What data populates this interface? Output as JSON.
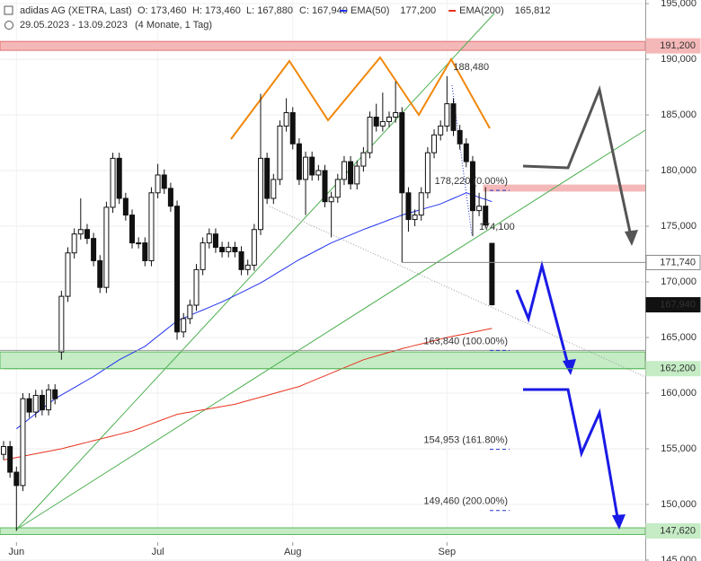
{
  "chart_data": {
    "type": "candlestick",
    "title": "adidas AG (XETRA, Last)",
    "header": {
      "open": "O: 173,460",
      "high": "H: 173,460",
      "low": "L: 167,880",
      "close": "C: 167,940"
    },
    "subtitle": "29.05.2023 - 13.09.2023",
    "period": "(4 Monate, 1 Tag)",
    "categories": [
      null,
      null,
      "Jun",
      null,
      null,
      null,
      null,
      null,
      null,
      null,
      null,
      null,
      null,
      null,
      null,
      null,
      null,
      null,
      null,
      null,
      null,
      null,
      null,
      null,
      "Jul",
      null,
      null,
      null,
      null,
      null,
      null,
      null,
      null,
      null,
      null,
      null,
      null,
      null,
      null,
      null,
      null,
      null,
      null,
      null,
      null,
      "Aug",
      null,
      null,
      null,
      null,
      null,
      null,
      null,
      null,
      null,
      null,
      null,
      null,
      null,
      null,
      null,
      null,
      null,
      null,
      null,
      null,
      null,
      null,
      null,
      "Sep",
      null,
      null,
      null,
      null,
      null,
      null,
      null
    ],
    "open": [
      154500,
      155200,
      152900,
      151700,
      159500,
      158300,
      159800,
      158500,
      160300,
      163700,
      168700,
      172600,
      174300,
      174700,
      173900,
      171900,
      169500,
      176700,
      181100,
      177500,
      176000,
      173500,
      173500,
      171900,
      178000,
      179600,
      178400,
      176800,
      165500,
      166700,
      167900,
      171100,
      173500,
      174300,
      173100,
      172700,
      173100,
      172700,
      171100,
      171500,
      174700,
      181100,
      177500,
      179200,
      184000,
      185200,
      182400,
      179200,
      181200,
      179600,
      180000,
      177200,
      177600,
      179200,
      180800,
      178800,
      180400,
      181600,
      184800,
      184000,
      184400,
      184800,
      185200,
      178000,
      175600,
      176000,
      178000,
      181600,
      183200,
      184000,
      186000,
      183600,
      182400,
      180800,
      176400,
      176800,
      173460
    ],
    "high": [
      155700,
      155700,
      153400,
      160000,
      160000,
      160300,
      160300,
      160800,
      160800,
      169200,
      173100,
      174800,
      177500,
      175200,
      174400,
      172400,
      177200,
      181600,
      181600,
      178000,
      176500,
      174000,
      174000,
      178500,
      180600,
      180100,
      178900,
      177300,
      167200,
      168400,
      171600,
      174000,
      174800,
      174800,
      173600,
      173600,
      173600,
      173200,
      172000,
      175200,
      186900,
      181600,
      179700,
      184500,
      186500,
      185700,
      182900,
      181700,
      181700,
      180500,
      180500,
      178100,
      179700,
      181300,
      181300,
      180900,
      182100,
      185300,
      186000,
      187000,
      185300,
      188000,
      185700,
      178500,
      176500,
      178500,
      182100,
      183700,
      184500,
      188480,
      186500,
      184100,
      182900,
      181300,
      178000,
      178500,
      173460
    ],
    "low": [
      154000,
      152400,
      147620,
      151200,
      157800,
      157800,
      158000,
      158000,
      159000,
      163000,
      168200,
      172100,
      173800,
      173400,
      171400,
      169000,
      169000,
      176200,
      177000,
      175500,
      173000,
      173000,
      171400,
      171400,
      177500,
      177900,
      176300,
      164800,
      165000,
      166200,
      167400,
      170600,
      173000,
      172600,
      172200,
      172200,
      172200,
      170600,
      170600,
      171000,
      174200,
      177000,
      177000,
      178700,
      183500,
      181900,
      178700,
      176000,
      179100,
      179100,
      176700,
      174000,
      177100,
      178700,
      178300,
      178300,
      179900,
      181100,
      183500,
      183500,
      183900,
      184300,
      171740,
      174500,
      175000,
      175500,
      177500,
      181100,
      182700,
      183500,
      183100,
      181900,
      180300,
      174100,
      175900,
      174800,
      167880
    ],
    "close": [
      155200,
      152900,
      151700,
      159500,
      158300,
      159800,
      158500,
      160300,
      159500,
      168700,
      172600,
      174300,
      174700,
      173900,
      171900,
      169500,
      176700,
      181100,
      177500,
      176000,
      173500,
      173500,
      171900,
      178000,
      179600,
      178400,
      176800,
      165500,
      166700,
      167900,
      171100,
      173500,
      174300,
      173100,
      172700,
      173100,
      172700,
      171100,
      171500,
      174700,
      181100,
      177500,
      179200,
      184000,
      185200,
      182400,
      179200,
      181200,
      179600,
      180000,
      177200,
      177600,
      179200,
      180800,
      178800,
      180400,
      181600,
      184800,
      184000,
      184400,
      184800,
      185200,
      178000,
      175600,
      176000,
      178000,
      181600,
      183200,
      184000,
      186000,
      183600,
      182400,
      180800,
      176400,
      176800,
      175100,
      167940
    ],
    "series": [
      {
        "name": "EMA(50)",
        "color": "#2233ee",
        "last_label": "177,200",
        "values": [
          null,
          null,
          156800,
          157250,
          157700,
          158150,
          158600,
          159050,
          159500,
          159830,
          160170,
          160500,
          160830,
          161170,
          161500,
          161880,
          162250,
          162630,
          163000,
          163300,
          163600,
          163900,
          164200,
          164660,
          165120,
          165580,
          166040,
          166500,
          166740,
          166990,
          167230,
          167470,
          167710,
          167960,
          168200,
          168480,
          168770,
          169050,
          169330,
          169620,
          169900,
          170250,
          170600,
          170950,
          171300,
          171650,
          172000,
          172300,
          172600,
          172900,
          173200,
          173500,
          173740,
          173980,
          174220,
          174460,
          174700,
          174920,
          175130,
          175350,
          175570,
          175780,
          176000,
          176170,
          176330,
          176500,
          176670,
          176830,
          177000,
          177250,
          177500,
          177750,
          178000,
          177800,
          177600,
          177400,
          177200
        ]
      },
      {
        "name": "EMA(200)",
        "color": "#e8321e",
        "last_label": "165,812",
        "values": [
          154000,
          154110,
          154220,
          154330,
          154440,
          154560,
          154670,
          154780,
          154890,
          155000,
          155150,
          155290,
          155440,
          155580,
          155730,
          155870,
          156020,
          156160,
          156310,
          156450,
          156600,
          156810,
          157030,
          157240,
          157460,
          157670,
          157890,
          158100,
          158200,
          158300,
          158400,
          158500,
          158600,
          158700,
          158800,
          158900,
          159000,
          159160,
          159320,
          159480,
          159640,
          159800,
          159960,
          160120,
          160280,
          160440,
          160600,
          160840,
          161080,
          161320,
          161560,
          161800,
          162040,
          162280,
          162520,
          162760,
          163000,
          163170,
          163330,
          163500,
          163670,
          163830,
          164000,
          164140,
          164290,
          164430,
          164570,
          164710,
          164860,
          165000,
          165120,
          165230,
          165350,
          165460,
          165580,
          165700,
          165812
        ]
      }
    ],
    "ylim": [
      145000,
      195000
    ],
    "yticks": [
      {
        "value": 145000,
        "label": "145,000"
      },
      {
        "value": 150000,
        "label": "150,000"
      },
      {
        "value": 155000,
        "label": "155,000"
      },
      {
        "value": 160000,
        "label": "160,000"
      },
      {
        "value": 165000,
        "label": "165,000"
      },
      {
        "value": 170000,
        "label": "170,000"
      },
      {
        "value": 175000,
        "label": "175,000"
      },
      {
        "value": 180000,
        "label": "180,000"
      },
      {
        "value": 185000,
        "label": "185,000"
      },
      {
        "value": 190000,
        "label": "190,000"
      },
      {
        "value": 195000,
        "label": "195,000"
      }
    ],
    "grid": true,
    "zones": [
      {
        "from": 190800,
        "to": 191600,
        "color": "#f5b8b8",
        "edge": "#e07070"
      },
      {
        "from": 162200,
        "to": 163700,
        "color": "#c5ecc5",
        "edge": "#5cb85c"
      },
      {
        "from": 147300,
        "to": 147900,
        "color": "#c5ecc5",
        "edge": "#5cb85c"
      },
      {
        "from": 178150,
        "to": 178700,
        "color": "#f5b8b8",
        "edge": "#f5b8b8",
        "start": 538
      }
    ],
    "levels": [
      {
        "value": 191200,
        "label": "191,200",
        "bg": "#f5b8b8",
        "fg": "#222"
      },
      {
        "value": 171740,
        "label": "171,740",
        "bg": "#fff",
        "fg": "#222",
        "line": "#888",
        "start": 62
      },
      {
        "value": 167940,
        "label": "167,940",
        "bg": "#111",
        "fg": "#fff"
      },
      {
        "value": 162200,
        "label": "162,200",
        "bg": "#c5ecc5",
        "fg": "#222",
        "line": "#5cb85c",
        "start": 0
      },
      {
        "value": 147620,
        "label": "147,620",
        "bg": "#c5ecc5",
        "fg": "#222"
      }
    ],
    "annotations": [
      {
        "value": 188480,
        "label": "188,480",
        "at": 69
      },
      {
        "value": 178220,
        "label": "178,220 (0.00%)",
        "at": 69,
        "dash": true
      },
      {
        "value": 174100,
        "label": "174,100",
        "at": 73
      },
      {
        "value": 163840,
        "label": "163,840 (100.00%)",
        "at": 66,
        "dash": true,
        "line": true
      },
      {
        "value": 154953,
        "label": "154,953 (161.80%)",
        "at": 66,
        "dash": true
      },
      {
        "value": 149460,
        "label": "149,460 (200.00%)",
        "at": 66,
        "dash": true
      }
    ]
  }
}
